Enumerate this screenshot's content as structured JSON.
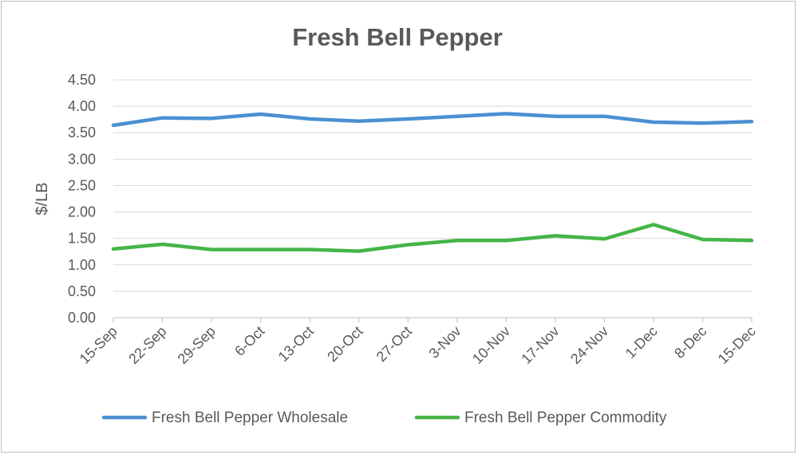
{
  "chart_data": {
    "type": "line",
    "title": "Fresh Bell Pepper",
    "xlabel": "",
    "ylabel": "$/LB",
    "ylim": [
      0,
      4.5
    ],
    "ytick_step": 0.5,
    "ytick_labels": [
      "0.00",
      "0.50",
      "1.00",
      "1.50",
      "2.00",
      "2.50",
      "3.00",
      "3.50",
      "4.00",
      "4.50"
    ],
    "grid": true,
    "legend_position": "bottom",
    "categories": [
      "15-Sep",
      "22-Sep",
      "29-Sep",
      "6-Oct",
      "13-Oct",
      "20-Oct",
      "27-Oct",
      "3-Nov",
      "10-Nov",
      "17-Nov",
      "24-Nov",
      "1-Dec",
      "8-Dec",
      "15-Dec"
    ],
    "series": [
      {
        "name": "Fresh Bell Pepper Wholesale",
        "color": "#4a90d2",
        "values": [
          3.64,
          3.78,
          3.77,
          3.85,
          3.76,
          3.72,
          3.76,
          3.81,
          3.86,
          3.81,
          3.81,
          3.7,
          3.68,
          3.71
        ]
      },
      {
        "name": "Fresh Bell Pepper Commodity",
        "color": "#44b548",
        "values": [
          1.3,
          1.39,
          1.29,
          1.29,
          1.29,
          1.26,
          1.38,
          1.46,
          1.46,
          1.55,
          1.49,
          1.76,
          1.48,
          1.46
        ]
      }
    ]
  }
}
